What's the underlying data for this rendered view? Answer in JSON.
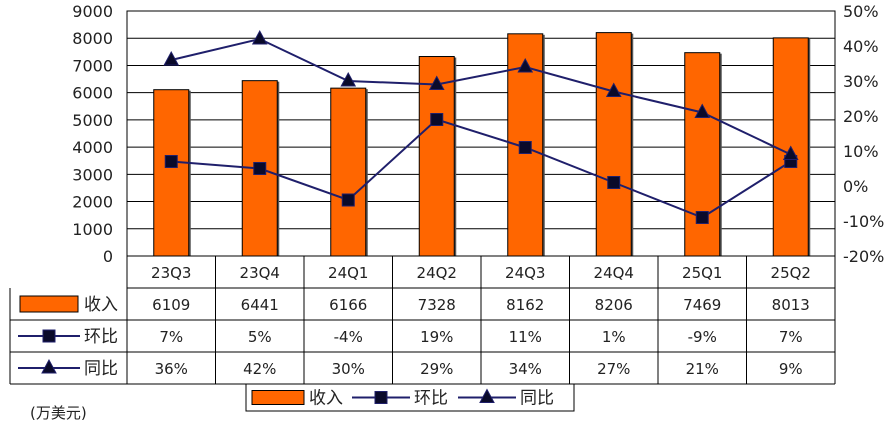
{
  "chart_data": {
    "type": "bar",
    "categories": [
      "23Q3",
      "23Q4",
      "24Q1",
      "24Q2",
      "24Q3",
      "24Q4",
      "25Q1",
      "25Q2"
    ],
    "series": [
      {
        "name": "收入",
        "kind": "bar",
        "axis": "left",
        "color": "#FF6600",
        "values": [
          6109,
          6441,
          6166,
          7328,
          8162,
          8206,
          7469,
          8013
        ],
        "labels": [
          "6109",
          "6441",
          "6166",
          "7328",
          "8162",
          "8206",
          "7469",
          "8013"
        ]
      },
      {
        "name": "环比",
        "kind": "line",
        "axis": "right",
        "marker": "square",
        "color": "#1F1F6B",
        "values": [
          7,
          5,
          -4,
          19,
          11,
          1,
          -9,
          7
        ],
        "labels": [
          "7%",
          "5%",
          "-4%",
          "19%",
          "11%",
          "1%",
          "-9%",
          "7%"
        ]
      },
      {
        "name": "同比",
        "kind": "line",
        "axis": "right",
        "marker": "triangle",
        "color": "#1F1F6B",
        "values": [
          36,
          42,
          30,
          29,
          34,
          27,
          21,
          9
        ],
        "labels": [
          "36%",
          "42%",
          "30%",
          "29%",
          "34%",
          "27%",
          "21%",
          "9%"
        ]
      }
    ],
    "y_left": {
      "min": 0,
      "max": 9000,
      "step": 1000,
      "ticks": [
        "0",
        "1000",
        "2000",
        "3000",
        "4000",
        "5000",
        "6000",
        "7000",
        "8000",
        "9000"
      ]
    },
    "y_right": {
      "min": -20,
      "max": 50,
      "step": 10,
      "ticks": [
        "-20%",
        "-10%",
        "0%",
        "10%",
        "20%",
        "30%",
        "40%",
        "50%"
      ]
    },
    "unit_label": "(万美元)",
    "legend": {
      "placement": "bottom",
      "items": [
        "收入",
        "环比",
        "同比"
      ]
    },
    "grid": true,
    "data_table": true
  }
}
